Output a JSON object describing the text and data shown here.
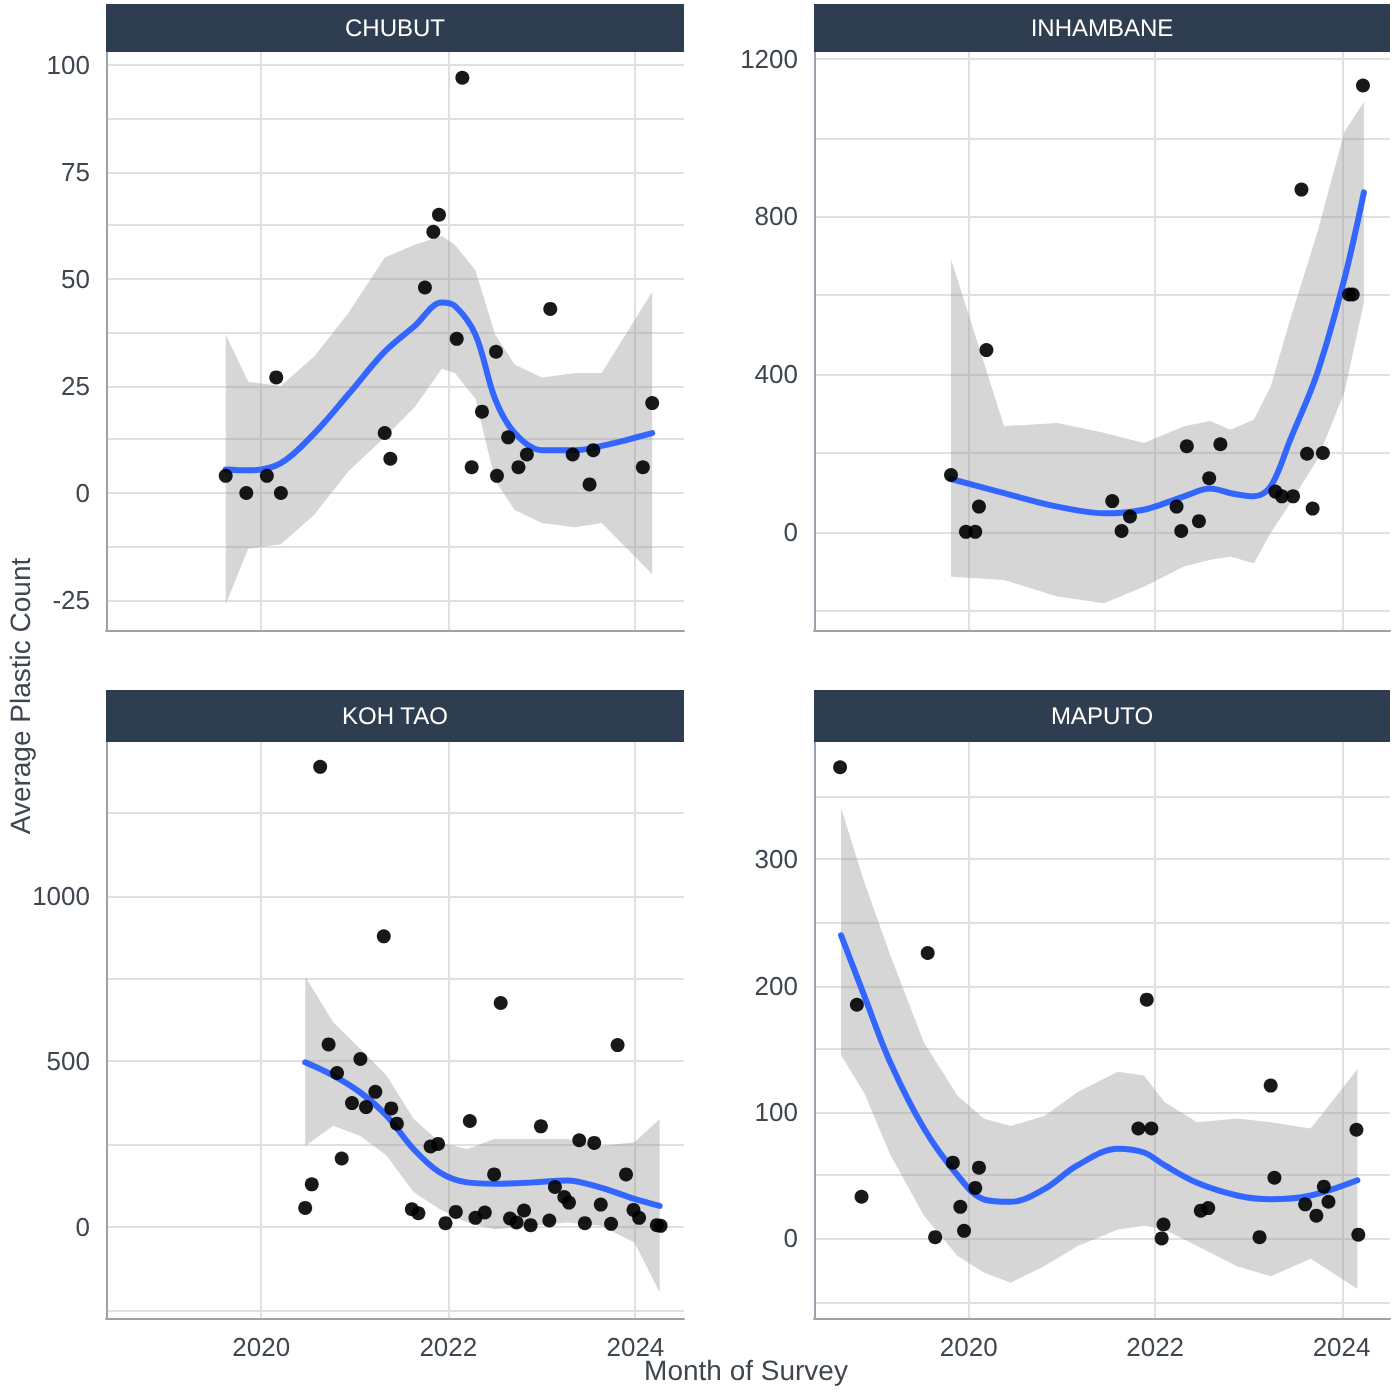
{
  "chart_data": [
    {
      "type": "scatter",
      "title": "CHUBUT",
      "ylabel": "Average Plastic Count",
      "xlim": [
        2018.34,
        2024.52
      ],
      "xticks": [
        2020,
        2022,
        2024
      ],
      "ylim": [
        -32,
        103
      ],
      "yticks": [
        -25,
        {
          "value": -12.5,
          "label": null
        },
        0,
        {
          "value": 12.5,
          "label": null
        },
        25,
        {
          "value": 37.5,
          "label": null
        },
        50,
        {
          "value": 62.5,
          "label": null
        },
        75,
        {
          "value": 87.5,
          "label": null
        },
        100
      ],
      "grid": true,
      "tick_labels": "y",
      "line_style": "solid",
      "series": [
        {
          "type": "scatter",
          "marker": "circle",
          "color": "#000000",
          "x": [
            2019.62,
            2019.84,
            2020.06,
            2020.16,
            2020.21,
            2021.32,
            2021.38,
            2021.75,
            2021.84,
            2021.9,
            2022.15,
            2022.09,
            2022.25,
            2022.36,
            2022.51,
            2022.52,
            2022.64,
            2022.75,
            2022.84,
            2023.09,
            2023.33,
            2023.51,
            2023.55,
            2024.08,
            2024.18
          ],
          "values": [
            4,
            0,
            4,
            27,
            0,
            14,
            8,
            48,
            61,
            65,
            97,
            36,
            6,
            19,
            33,
            4,
            13,
            6,
            9,
            43,
            9,
            2,
            10,
            6,
            21
          ]
        },
        {
          "type": "line",
          "marker": "none",
          "color": "#3366ff",
          "x": [
            2019.62,
            2019.86,
            2020.21,
            2020.57,
            2020.93,
            2021.32,
            2021.64,
            2021.93,
            2022.07,
            2022.29,
            2022.5,
            2022.71,
            2023.0,
            2023.36,
            2023.64,
            2024.18
          ],
          "values": [
            5.5,
            5.3,
            7,
            14,
            23,
            33,
            39,
            44.5,
            43.7,
            37,
            22,
            14,
            10,
            10,
            11,
            14
          ],
          "lower": [
            -26,
            -13,
            -12,
            -5,
            5,
            13,
            20,
            29,
            28,
            22,
            3,
            -4,
            -7,
            -8,
            -7,
            -19
          ],
          "upper": [
            37,
            26,
            25,
            32,
            42,
            55,
            58,
            60,
            58,
            52,
            37,
            30,
            27,
            28,
            28,
            47
          ]
        }
      ]
    },
    {
      "type": "scatter",
      "title": "INHAMBANE",
      "xlim": [
        2018.34,
        2024.52
      ],
      "xticks": [
        2020,
        2022,
        2024
      ],
      "ylim": [
        -249,
        1217
      ],
      "yticks": [
        {
          "value": -200,
          "label": null
        },
        0,
        {
          "value": 200,
          "label": null
        },
        400,
        {
          "value": 600,
          "label": null
        },
        800,
        {
          "value": 1000,
          "label": null
        },
        1200
      ],
      "grid": true,
      "tick_labels": "y",
      "line_style": "solid",
      "series": [
        {
          "type": "scatter",
          "marker": "circle",
          "color": "#000000",
          "x": [
            2019.81,
            2019.97,
            2020.07,
            2020.11,
            2020.19,
            2021.54,
            2021.64,
            2021.73,
            2022.23,
            2022.28,
            2022.34,
            2022.47,
            2022.58,
            2022.7,
            2023.29,
            2023.36,
            2023.48,
            2023.57,
            2023.63,
            2023.69,
            2023.8,
            2024.08,
            2024.12,
            2024.23
          ],
          "values": [
            144,
            0,
            0,
            64,
            461,
            78,
            2,
            39,
            64,
            2,
            217,
            27,
            136,
            222,
            102,
            90,
            90,
            868,
            198,
            59,
            200,
            602,
            602,
            1132
          ]
        },
        {
          "type": "line",
          "marker": "none",
          "color": "#3366ff",
          "x": [
            2019.81,
            2020.38,
            2020.95,
            2021.45,
            2021.88,
            2022.31,
            2022.59,
            2022.81,
            2023.06,
            2023.24,
            2023.45,
            2023.74,
            2024.03,
            2024.24
          ],
          "values": [
            134,
            98,
            64,
            47,
            56,
            90,
            110,
            98,
            90,
            115,
            234,
            403,
            641,
            861
          ],
          "lower": [
            -114,
            -122,
            -164,
            -181,
            -139,
            -88,
            -71,
            -63,
            -80,
            -3,
            73,
            183,
            353,
            581
          ],
          "upper": [
            692,
            268,
            276,
            251,
            225,
            268,
            281,
            259,
            285,
            369,
            539,
            759,
            1014,
            1090
          ]
        }
      ]
    },
    {
      "type": "scatter",
      "title": "KOH TAO",
      "xlabel": "Month of Survey",
      "xlim": [
        2018.34,
        2024.52
      ],
      "xticks": [
        2020,
        2022,
        2024
      ],
      "ylim": [
        -274,
        1463
      ],
      "yticks": [
        {
          "value": -250,
          "label": null
        },
        0,
        {
          "value": 250,
          "label": null
        },
        500,
        {
          "value": 750,
          "label": null
        },
        1000,
        {
          "value": 1250,
          "label": null
        }
      ],
      "grid": true,
      "line_style": "solid",
      "series": [
        {
          "type": "scatter",
          "marker": "circle",
          "color": "#000000",
          "x": [
            2020.47,
            2020.54,
            2020.63,
            2020.72,
            2020.81,
            2020.86,
            2020.97,
            2021.06,
            2021.12,
            2021.22,
            2021.31,
            2021.39,
            2021.45,
            2021.61,
            2021.68,
            2021.81,
            2021.89,
            2021.97,
            2022.08,
            2022.23,
            2022.29,
            2022.39,
            2022.49,
            2022.56,
            2022.66,
            2022.73,
            2022.81,
            2022.88,
            2022.99,
            2023.08,
            2023.14,
            2023.24,
            2023.29,
            2023.4,
            2023.46,
            2023.56,
            2023.63,
            2023.74,
            2023.81,
            2023.9,
            2023.98,
            2024.04,
            2024.23,
            2024.27
          ],
          "values": [
            58,
            129,
            1388,
            551,
            465,
            207,
            374,
            507,
            362,
            408,
            877,
            358,
            312,
            54,
            42,
            243,
            251,
            12,
            46,
            320,
            28,
            44,
            159,
            676,
            26,
            14,
            50,
            6,
            304,
            20,
            121,
            91,
            74,
            262,
            12,
            254,
            68,
            10,
            549,
            159,
            52,
            28,
            6,
            4
          ]
        },
        {
          "type": "line",
          "marker": "none",
          "color": "#3366ff",
          "x": [
            2020.47,
            2020.77,
            2021.06,
            2021.34,
            2021.63,
            2021.91,
            2022.2,
            2022.49,
            2022.91,
            2023.27,
            2023.63,
            2023.99,
            2024.26
          ],
          "values": [
            497,
            457,
            406,
            336,
            235,
            165,
            135,
            131,
            135,
            141,
            119,
            85,
            64
          ],
          "lower": [
            245,
            306,
            275,
            215,
            105,
            54,
            14,
            -6,
            4,
            14,
            4,
            -46,
            -197
          ],
          "upper": [
            755,
            618,
            537,
            457,
            326,
            256,
            235,
            266,
            266,
            266,
            245,
            256,
            326
          ]
        }
      ]
    },
    {
      "type": "scatter",
      "title": "MAPUTO",
      "xlim": [
        2018.34,
        2024.52
      ],
      "xticks": [
        2020,
        2022,
        2024
      ],
      "ylim": [
        -63,
        393
      ],
      "yticks": [
        {
          "value": -50,
          "label": null
        },
        0,
        {
          "value": 50,
          "label": null
        },
        100,
        {
          "value": 150,
          "label": null
        },
        200,
        {
          "value": 250,
          "label": null
        },
        300,
        {
          "value": 350,
          "label": null
        }
      ],
      "grid": true,
      "line_style": "solid",
      "series": [
        {
          "type": "scatter",
          "marker": "circle",
          "color": "#000000",
          "x": [
            2018.62,
            2018.8,
            2018.85,
            2019.56,
            2019.64,
            2019.83,
            2019.91,
            2019.95,
            2020.07,
            2020.11,
            2021.82,
            2021.91,
            2021.96,
            2022.07,
            2022.09,
            2022.49,
            2022.57,
            2023.12,
            2023.24,
            2023.28,
            2023.61,
            2023.73,
            2023.81,
            2023.86,
            2024.16,
            2024.18
          ],
          "values": [
            373,
            185,
            33,
            226,
            1,
            60,
            25,
            6,
            40,
            56,
            87,
            189,
            87,
            0,
            11,
            22,
            24,
            1,
            121,
            48,
            27,
            18,
            41,
            29,
            86,
            3
          ]
        },
        {
          "type": "line",
          "marker": "none",
          "color": "#3366ff",
          "x": [
            2018.63,
            2018.88,
            2019.16,
            2019.52,
            2019.88,
            2020.16,
            2020.45,
            2020.81,
            2021.17,
            2021.6,
            2021.88,
            2022.1,
            2022.45,
            2022.88,
            2023.24,
            2023.67,
            2024.17
          ],
          "values": [
            240,
            192,
            139,
            87,
            50,
            31,
            29,
            39,
            58,
            71,
            68,
            58,
            44,
            34,
            31,
            34,
            46
          ],
          "lower": [
            145,
            115,
            66,
            18,
            -14,
            -27,
            -35,
            -22,
            -6,
            7,
            10,
            7,
            -6,
            -22,
            -30,
            -16,
            -40
          ],
          "upper": [
            341,
            282,
            224,
            155,
            113,
            95,
            89,
            97,
            116,
            132,
            129,
            108,
            92,
            95,
            92,
            87,
            134
          ]
        }
      ]
    }
  ]
}
